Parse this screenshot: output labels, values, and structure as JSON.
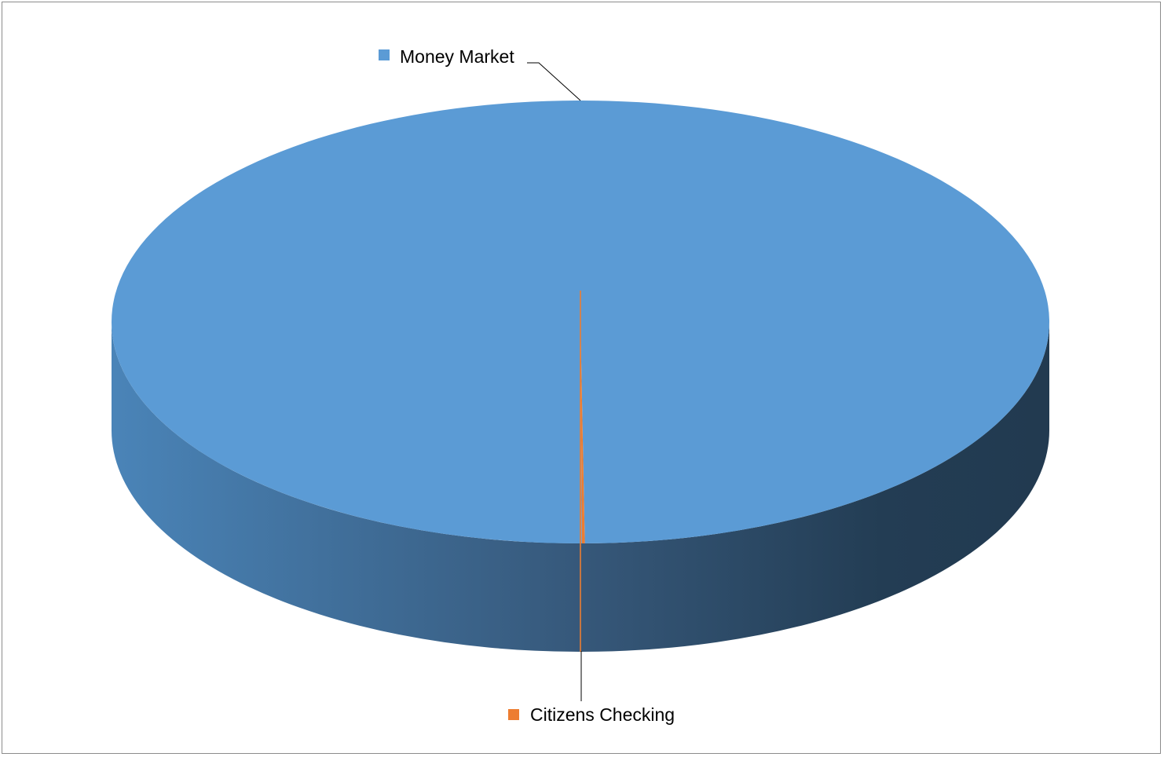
{
  "chart_data": {
    "type": "pie",
    "style": "3d",
    "categories": [
      "Money Market",
      "Citizens Checking"
    ],
    "values": [
      99.9,
      0.1
    ],
    "colors": [
      "#5b9bd5",
      "#ed7d31"
    ],
    "title": "",
    "legend": "none",
    "data_labels": "category names with leader lines"
  }
}
